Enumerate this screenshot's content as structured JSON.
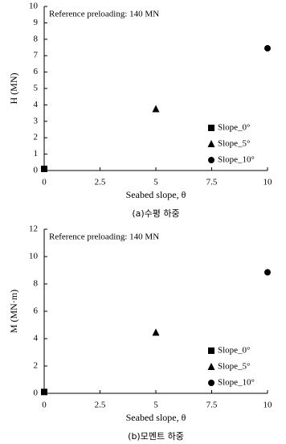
{
  "chart_data": [
    {
      "type": "scatter",
      "annotation": "Reference preloading: 140 MN",
      "x_label": "Seabed slope, θ",
      "y_label": "H (MN)",
      "caption": "(a)수평 하중",
      "xlim": [
        0,
        10
      ],
      "xticks": [
        0,
        2.5,
        5,
        7.5,
        10
      ],
      "ylim": [
        0,
        10
      ],
      "yticks": [
        0,
        1,
        2,
        3,
        4,
        5,
        6,
        7,
        8,
        9,
        10
      ],
      "legend": "lower right",
      "series": [
        {
          "name": "Slope_0°",
          "color": "#000000",
          "marker": "square",
          "x": [
            0
          ],
          "values": [
            0.1
          ]
        },
        {
          "name": "Slope_5°",
          "color": "#000000",
          "marker": "triangle",
          "x": [
            5
          ],
          "values": [
            3.75
          ]
        },
        {
          "name": "Slope_10°",
          "color": "#000000",
          "marker": "circle",
          "x": [
            10
          ],
          "values": [
            7.45
          ]
        }
      ]
    },
    {
      "type": "scatter",
      "annotation": "Reference preloading: 140 MN",
      "x_label": "Seabed slope, θ",
      "y_label": "M (MN·m)",
      "caption": "(b)모멘트 하중",
      "xlim": [
        0,
        10
      ],
      "xticks": [
        0,
        2.5,
        5,
        7.5,
        10
      ],
      "ylim": [
        0,
        12
      ],
      "yticks": [
        0,
        2,
        4,
        6,
        8,
        10,
        12
      ],
      "legend": "lower right",
      "series": [
        {
          "name": "Slope_0°",
          "color": "#000000",
          "marker": "square",
          "x": [
            0
          ],
          "values": [
            0.1
          ]
        },
        {
          "name": "Slope_5°",
          "color": "#000000",
          "marker": "triangle",
          "x": [
            5
          ],
          "values": [
            4.45
          ]
        },
        {
          "name": "Slope_10°",
          "color": "#000000",
          "marker": "circle",
          "x": [
            10
          ],
          "values": [
            8.85
          ]
        }
      ]
    }
  ]
}
